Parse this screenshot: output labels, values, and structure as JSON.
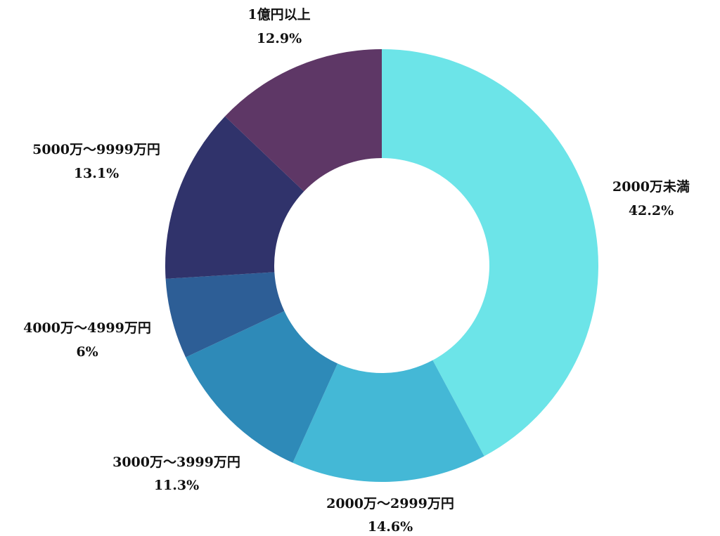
{
  "chart_data": {
    "type": "pie",
    "variant": "donut",
    "title": "",
    "start": "12-o'clock",
    "direction": "clockwise",
    "slices": [
      {
        "label": "2000万未満",
        "value": 42.2,
        "value_label": "42.2%",
        "color": "#6ce4e8"
      },
      {
        "label": "2000万～2999万円",
        "value": 14.6,
        "value_label": "14.6%",
        "color": "#44b8d6"
      },
      {
        "label": "3000万～3999万円",
        "value": 11.3,
        "value_label": "11.3%",
        "color": "#2e8ab8"
      },
      {
        "label": "4000万～4999万円",
        "value": 6,
        "value_label": "6%",
        "color": "#2d5e96"
      },
      {
        "label": "5000万～9999万円",
        "value": 13.1,
        "value_label": "13.1%",
        "color": "#30336b"
      },
      {
        "label": "1億円以上",
        "value": 12.9,
        "value_label": "12.9%",
        "color": "#5e3766"
      }
    ]
  }
}
